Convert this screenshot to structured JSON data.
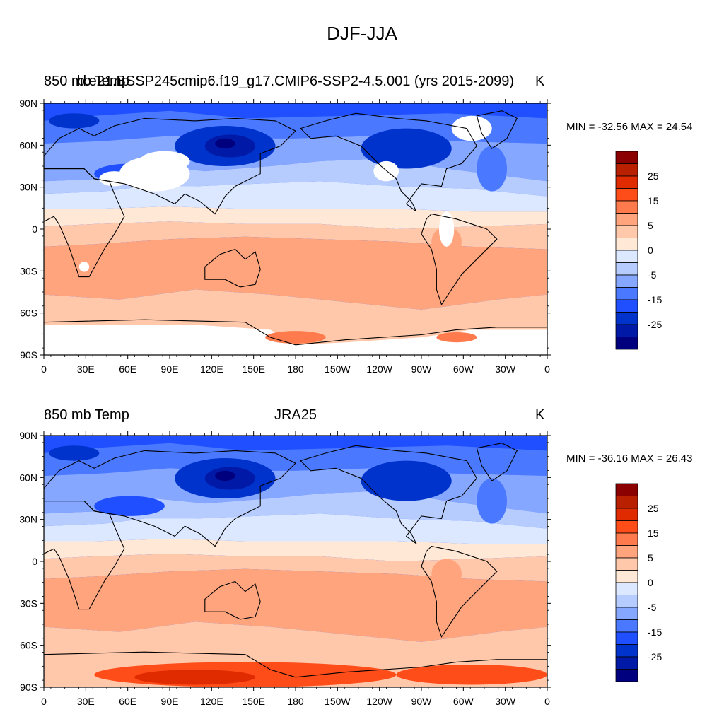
{
  "title": "DJF-JJA",
  "panels": [
    {
      "left_title": "850 mb Temp",
      "center_title": "b.e21.BSSP245cmip6.f19_g17.CMIP6-SSP2-4.5.001 (yrs 2015-2099)",
      "units": "K",
      "minmax": "MIN = -32.56 MAX =  24.54",
      "has_missing": true
    },
    {
      "left_title": "850 mb Temp",
      "center_title": "JRA25",
      "units": "K",
      "minmax": "MIN = -36.16 MAX =  26.43",
      "has_missing": false
    }
  ],
  "axes": {
    "lat_ticks": [
      "90N",
      "60N",
      "30N",
      "0",
      "30S",
      "60S",
      "90S"
    ],
    "lon_ticks": [
      "0",
      "30E",
      "60E",
      "90E",
      "120E",
      "150E",
      "180",
      "150W",
      "120W",
      "90W",
      "60W",
      "30W",
      "0"
    ]
  },
  "colorbar": {
    "levels": [
      -30,
      -25,
      -20,
      -15,
      -10,
      -5,
      -2,
      0,
      2,
      5,
      10,
      15,
      20,
      25,
      30
    ],
    "labels": [
      "25",
      "15",
      "5",
      "0",
      "-5",
      "-15",
      "-25"
    ],
    "colors": [
      "#00007f",
      "#0019a6",
      "#0033cc",
      "#1f4fff",
      "#4a78ff",
      "#85a7ff",
      "#b6ccff",
      "#dbe8ff",
      "#ffe8d6",
      "#ffc8ab",
      "#ffa47d",
      "#ff7a4c",
      "#ff4d1a",
      "#e02b00",
      "#b82000",
      "#8b0000"
    ]
  },
  "missing_color": "#ffffff"
}
